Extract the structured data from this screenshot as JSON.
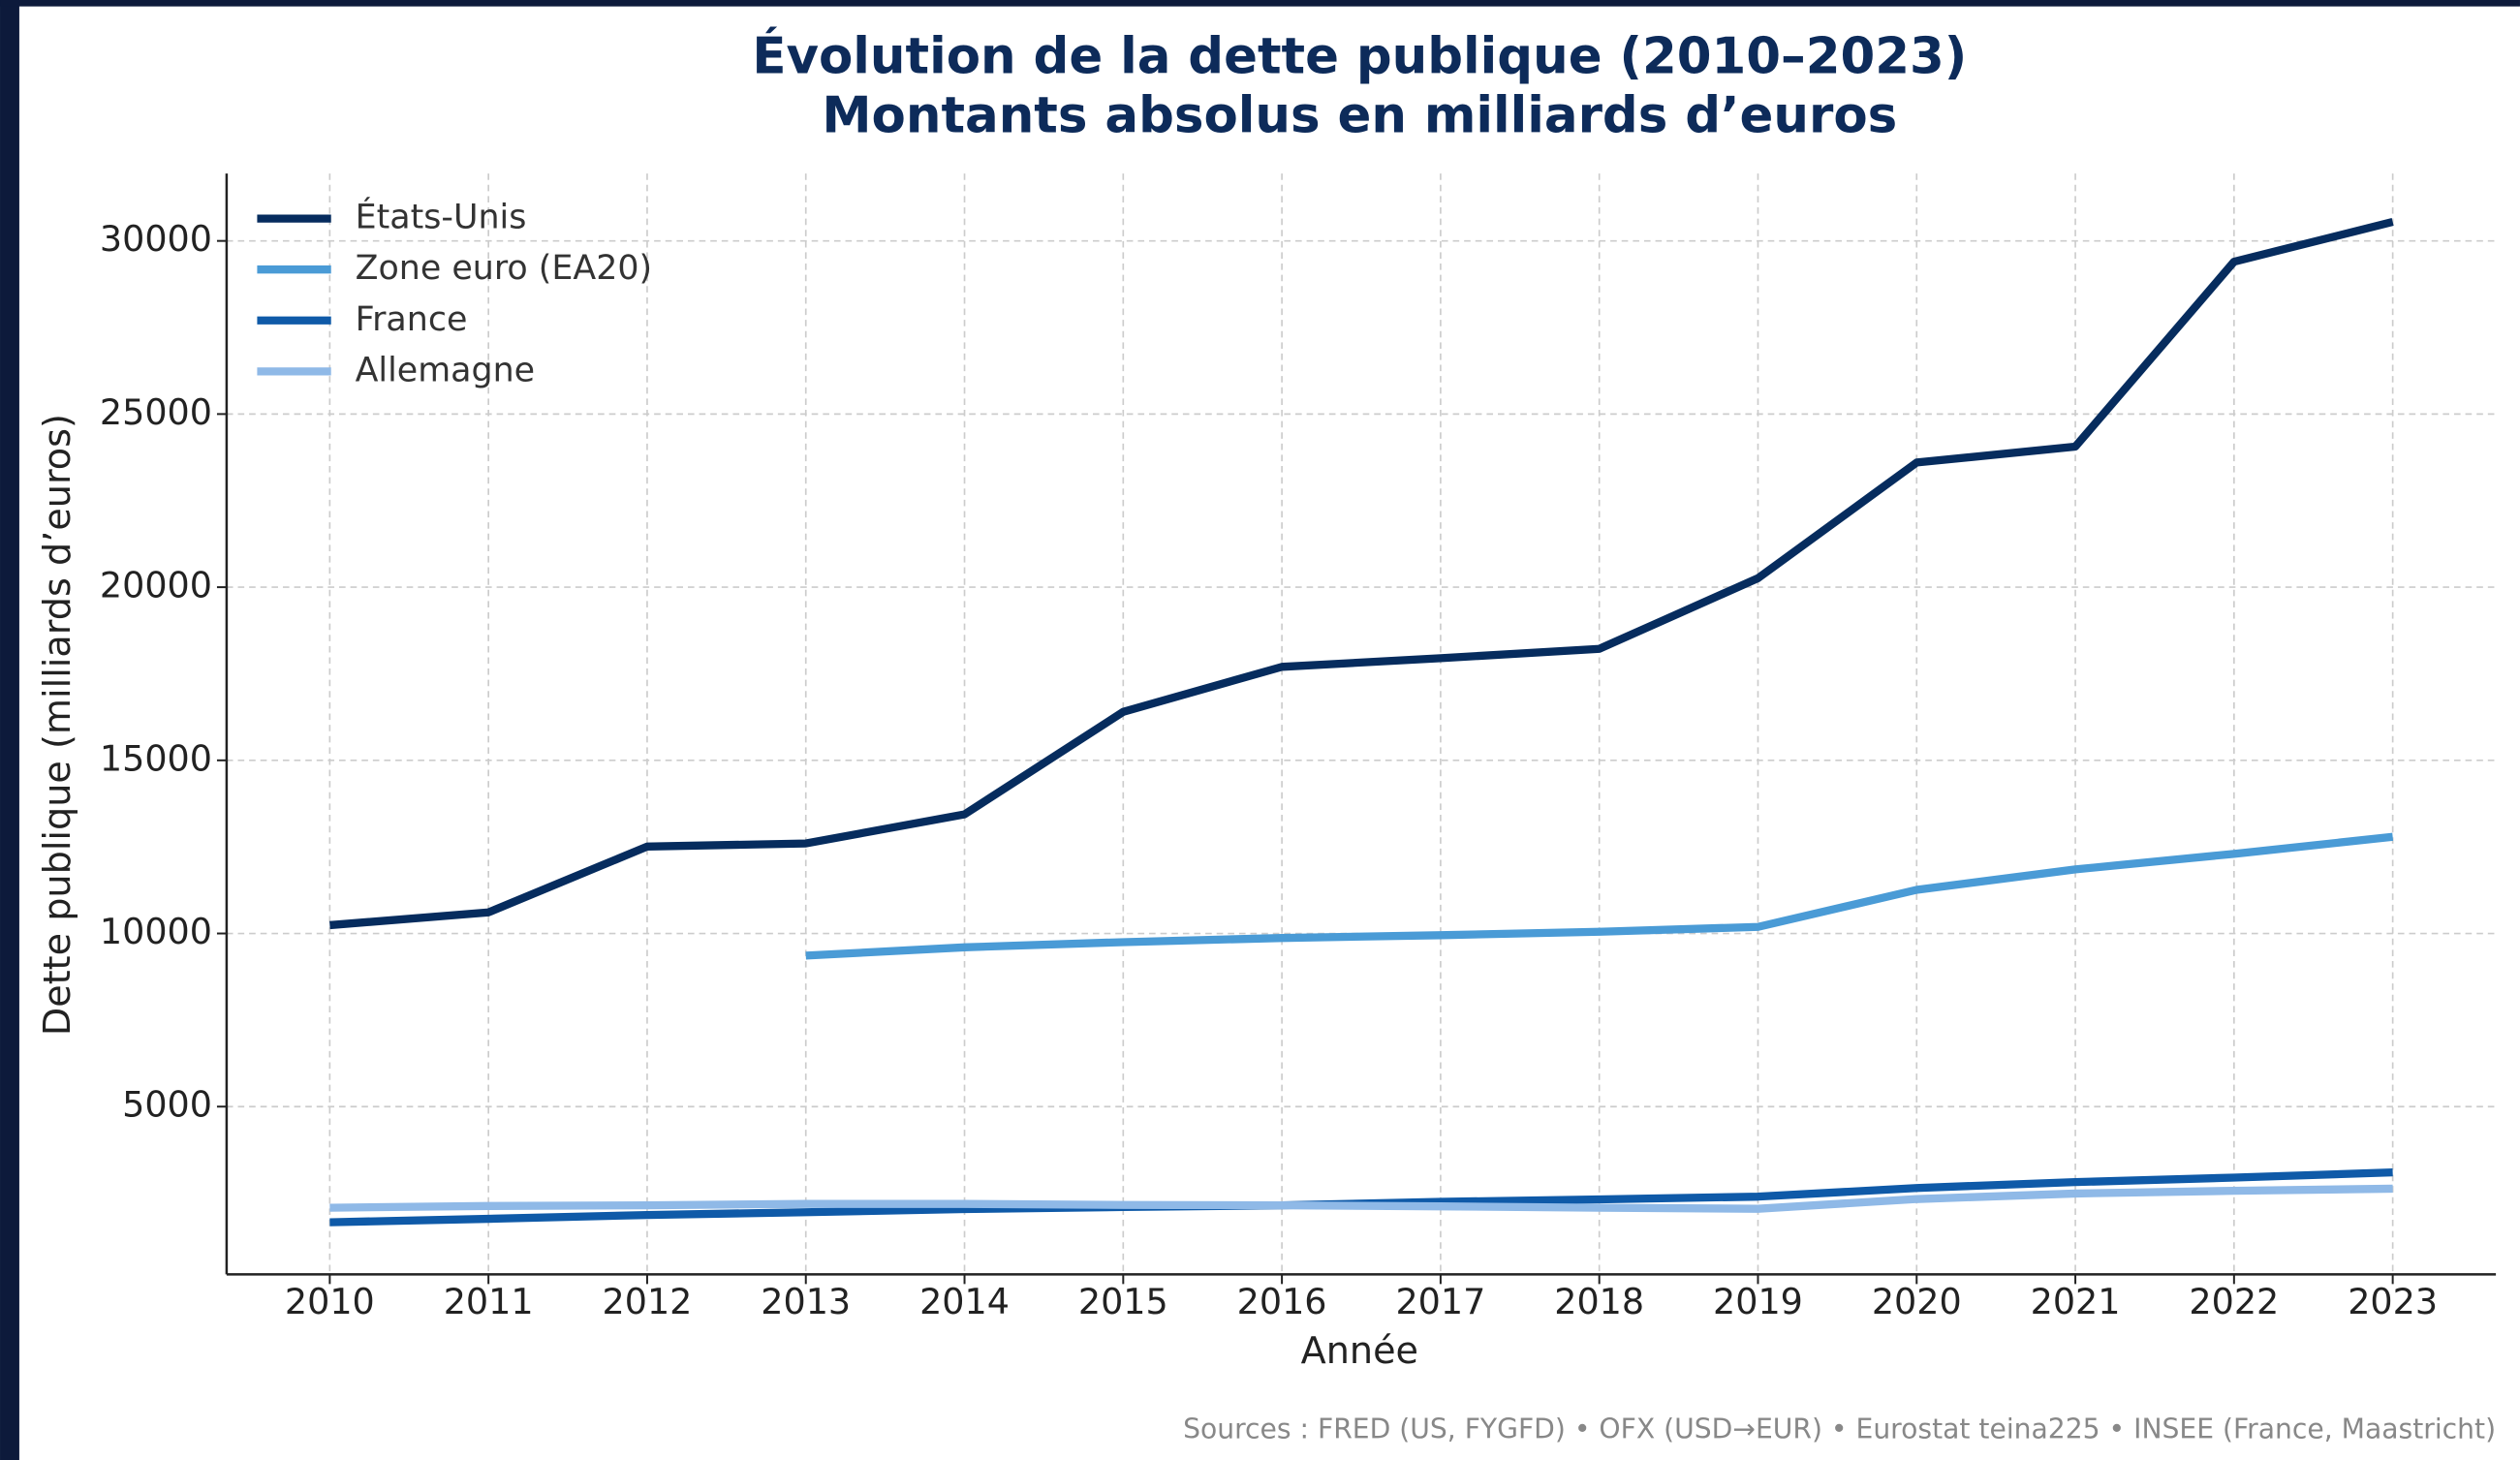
{
  "chart_data": {
    "type": "line",
    "title": "Évolution de la dette publique (2010–2023)",
    "subtitle": "Montants absolus en milliards d’euros",
    "x_label": "Année",
    "y_label": "Dette publique (milliards d’euros)",
    "source": "Sources : FRED (US, FYGFD) • OFX (USD→EUR) • Eurostat teina225 • INSEE (France, Maastricht)",
    "x": [
      2010,
      2011,
      2012,
      2013,
      2014,
      2015,
      2016,
      2017,
      2018,
      2019,
      2020,
      2021,
      2022,
      2023
    ],
    "series": [
      {
        "name": "États-Unis",
        "color": "#062c5e",
        "values": [
          10240,
          10610,
          12510,
          12600,
          13440,
          16400,
          17700,
          17950,
          18220,
          20260,
          23600,
          24060,
          29400,
          30550
        ]
      },
      {
        "name": "Zone euro (EA20)",
        "color": "#4a9bd6",
        "values": [
          null,
          null,
          null,
          9360,
          9600,
          9750,
          9870,
          9950,
          10050,
          10190,
          11260,
          11850,
          12300,
          12790
        ]
      },
      {
        "name": "France",
        "color": "#0f5aa8",
        "values": [
          1660,
          1760,
          1870,
          1950,
          2040,
          2100,
          2150,
          2250,
          2320,
          2400,
          2650,
          2820,
          2950,
          3100
        ]
      },
      {
        "name": "Allemagne",
        "color": "#8fb9e7",
        "values": [
          2080,
          2130,
          2150,
          2190,
          2190,
          2160,
          2150,
          2120,
          2080,
          2050,
          2330,
          2490,
          2570,
          2630
        ]
      }
    ],
    "xlim": [
      2009.35,
      2023.65
    ],
    "xticks": [
      2010,
      2011,
      2012,
      2013,
      2014,
      2015,
      2016,
      2017,
      2018,
      2019,
      2020,
      2021,
      2022,
      2023
    ],
    "ylim": [
      155,
      31945
    ],
    "yticks": [
      5000,
      10000,
      15000,
      20000,
      25000,
      30000
    ],
    "grid": true,
    "legend": "upper left"
  }
}
